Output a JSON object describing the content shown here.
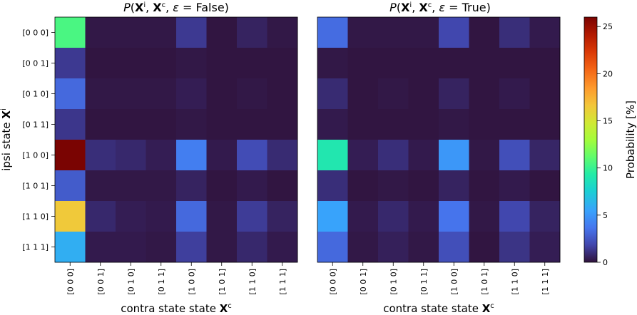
{
  "chart_data": [
    {
      "type": "heatmap",
      "title": "P(Xⁱ, Xᶜ, ε = False)",
      "xlabel": "contra state state Xᶜ",
      "ylabel": "ipsi state Xⁱ",
      "x_categories": [
        "[0 0 0]",
        "[0 0 1]",
        "[0 1 0]",
        "[0 1 1]",
        "[1 0 0]",
        "[1 0 1]",
        "[1 1 0]",
        "[1 1 1]"
      ],
      "y_categories": [
        "[0 0 0]",
        "[0 0 1]",
        "[0 1 0]",
        "[0 1 1]",
        "[1 0 0]",
        "[1 0 1]",
        "[1 1 0]",
        "[1 1 1]"
      ],
      "values": [
        [
          10.5,
          0.2,
          0.2,
          0.2,
          1.4,
          0.1,
          0.6,
          0.2
        ],
        [
          1.4,
          0.1,
          0.1,
          0.1,
          0.2,
          0.1,
          0.1,
          0.1
        ],
        [
          3.2,
          0.2,
          0.2,
          0.2,
          0.4,
          0.1,
          0.2,
          0.1
        ],
        [
          1.3,
          0.1,
          0.1,
          0.1,
          0.2,
          0.1,
          0.1,
          0.1
        ],
        [
          26.0,
          1.0,
          0.8,
          0.4,
          4.0,
          0.3,
          2.1,
          0.9
        ],
        [
          2.7,
          0.2,
          0.2,
          0.2,
          0.6,
          0.1,
          0.3,
          0.1
        ],
        [
          16.5,
          0.8,
          0.4,
          0.3,
          3.2,
          0.2,
          1.5,
          0.6
        ],
        [
          6.0,
          0.3,
          0.3,
          0.2,
          1.6,
          0.2,
          0.8,
          0.3
        ]
      ]
    },
    {
      "type": "heatmap",
      "title": "P(Xⁱ, Xᶜ, ε = True)",
      "xlabel": "contra state state Xᶜ",
      "x_categories": [
        "[0 0 0]",
        "[0 0 1]",
        "[0 1 0]",
        "[0 1 1]",
        "[1 0 0]",
        "[1 0 1]",
        "[1 1 0]",
        "[1 1 1]"
      ],
      "y_categories": [
        "[0 0 0]",
        "[0 0 1]",
        "[0 1 0]",
        "[0 1 1]",
        "[1 0 0]",
        "[1 0 1]",
        "[1 1 0]",
        "[1 1 1]"
      ],
      "values": [
        [
          3.3,
          0.2,
          0.2,
          0.2,
          1.9,
          0.1,
          1.0,
          0.3
        ],
        [
          0.2,
          0.1,
          0.1,
          0.1,
          0.1,
          0.1,
          0.1,
          0.1
        ],
        [
          0.9,
          0.1,
          0.2,
          0.1,
          0.6,
          0.1,
          0.3,
          0.1
        ],
        [
          0.3,
          0.1,
          0.1,
          0.1,
          0.2,
          0.1,
          0.1,
          0.1
        ],
        [
          9.0,
          0.4,
          1.0,
          0.3,
          5.0,
          0.2,
          2.2,
          0.7
        ],
        [
          1.0,
          0.1,
          0.2,
          0.1,
          0.6,
          0.1,
          0.3,
          0.1
        ],
        [
          5.5,
          0.3,
          0.8,
          0.3,
          3.6,
          0.2,
          1.9,
          0.6
        ],
        [
          3.2,
          0.2,
          0.5,
          0.2,
          2.2,
          0.1,
          1.2,
          0.4
        ]
      ]
    }
  ],
  "colorbar": {
    "label": "Probability [%]",
    "colormap": "turbo",
    "range": [
      0,
      26
    ],
    "ticks": [
      0,
      5,
      10,
      15,
      20,
      25
    ]
  }
}
